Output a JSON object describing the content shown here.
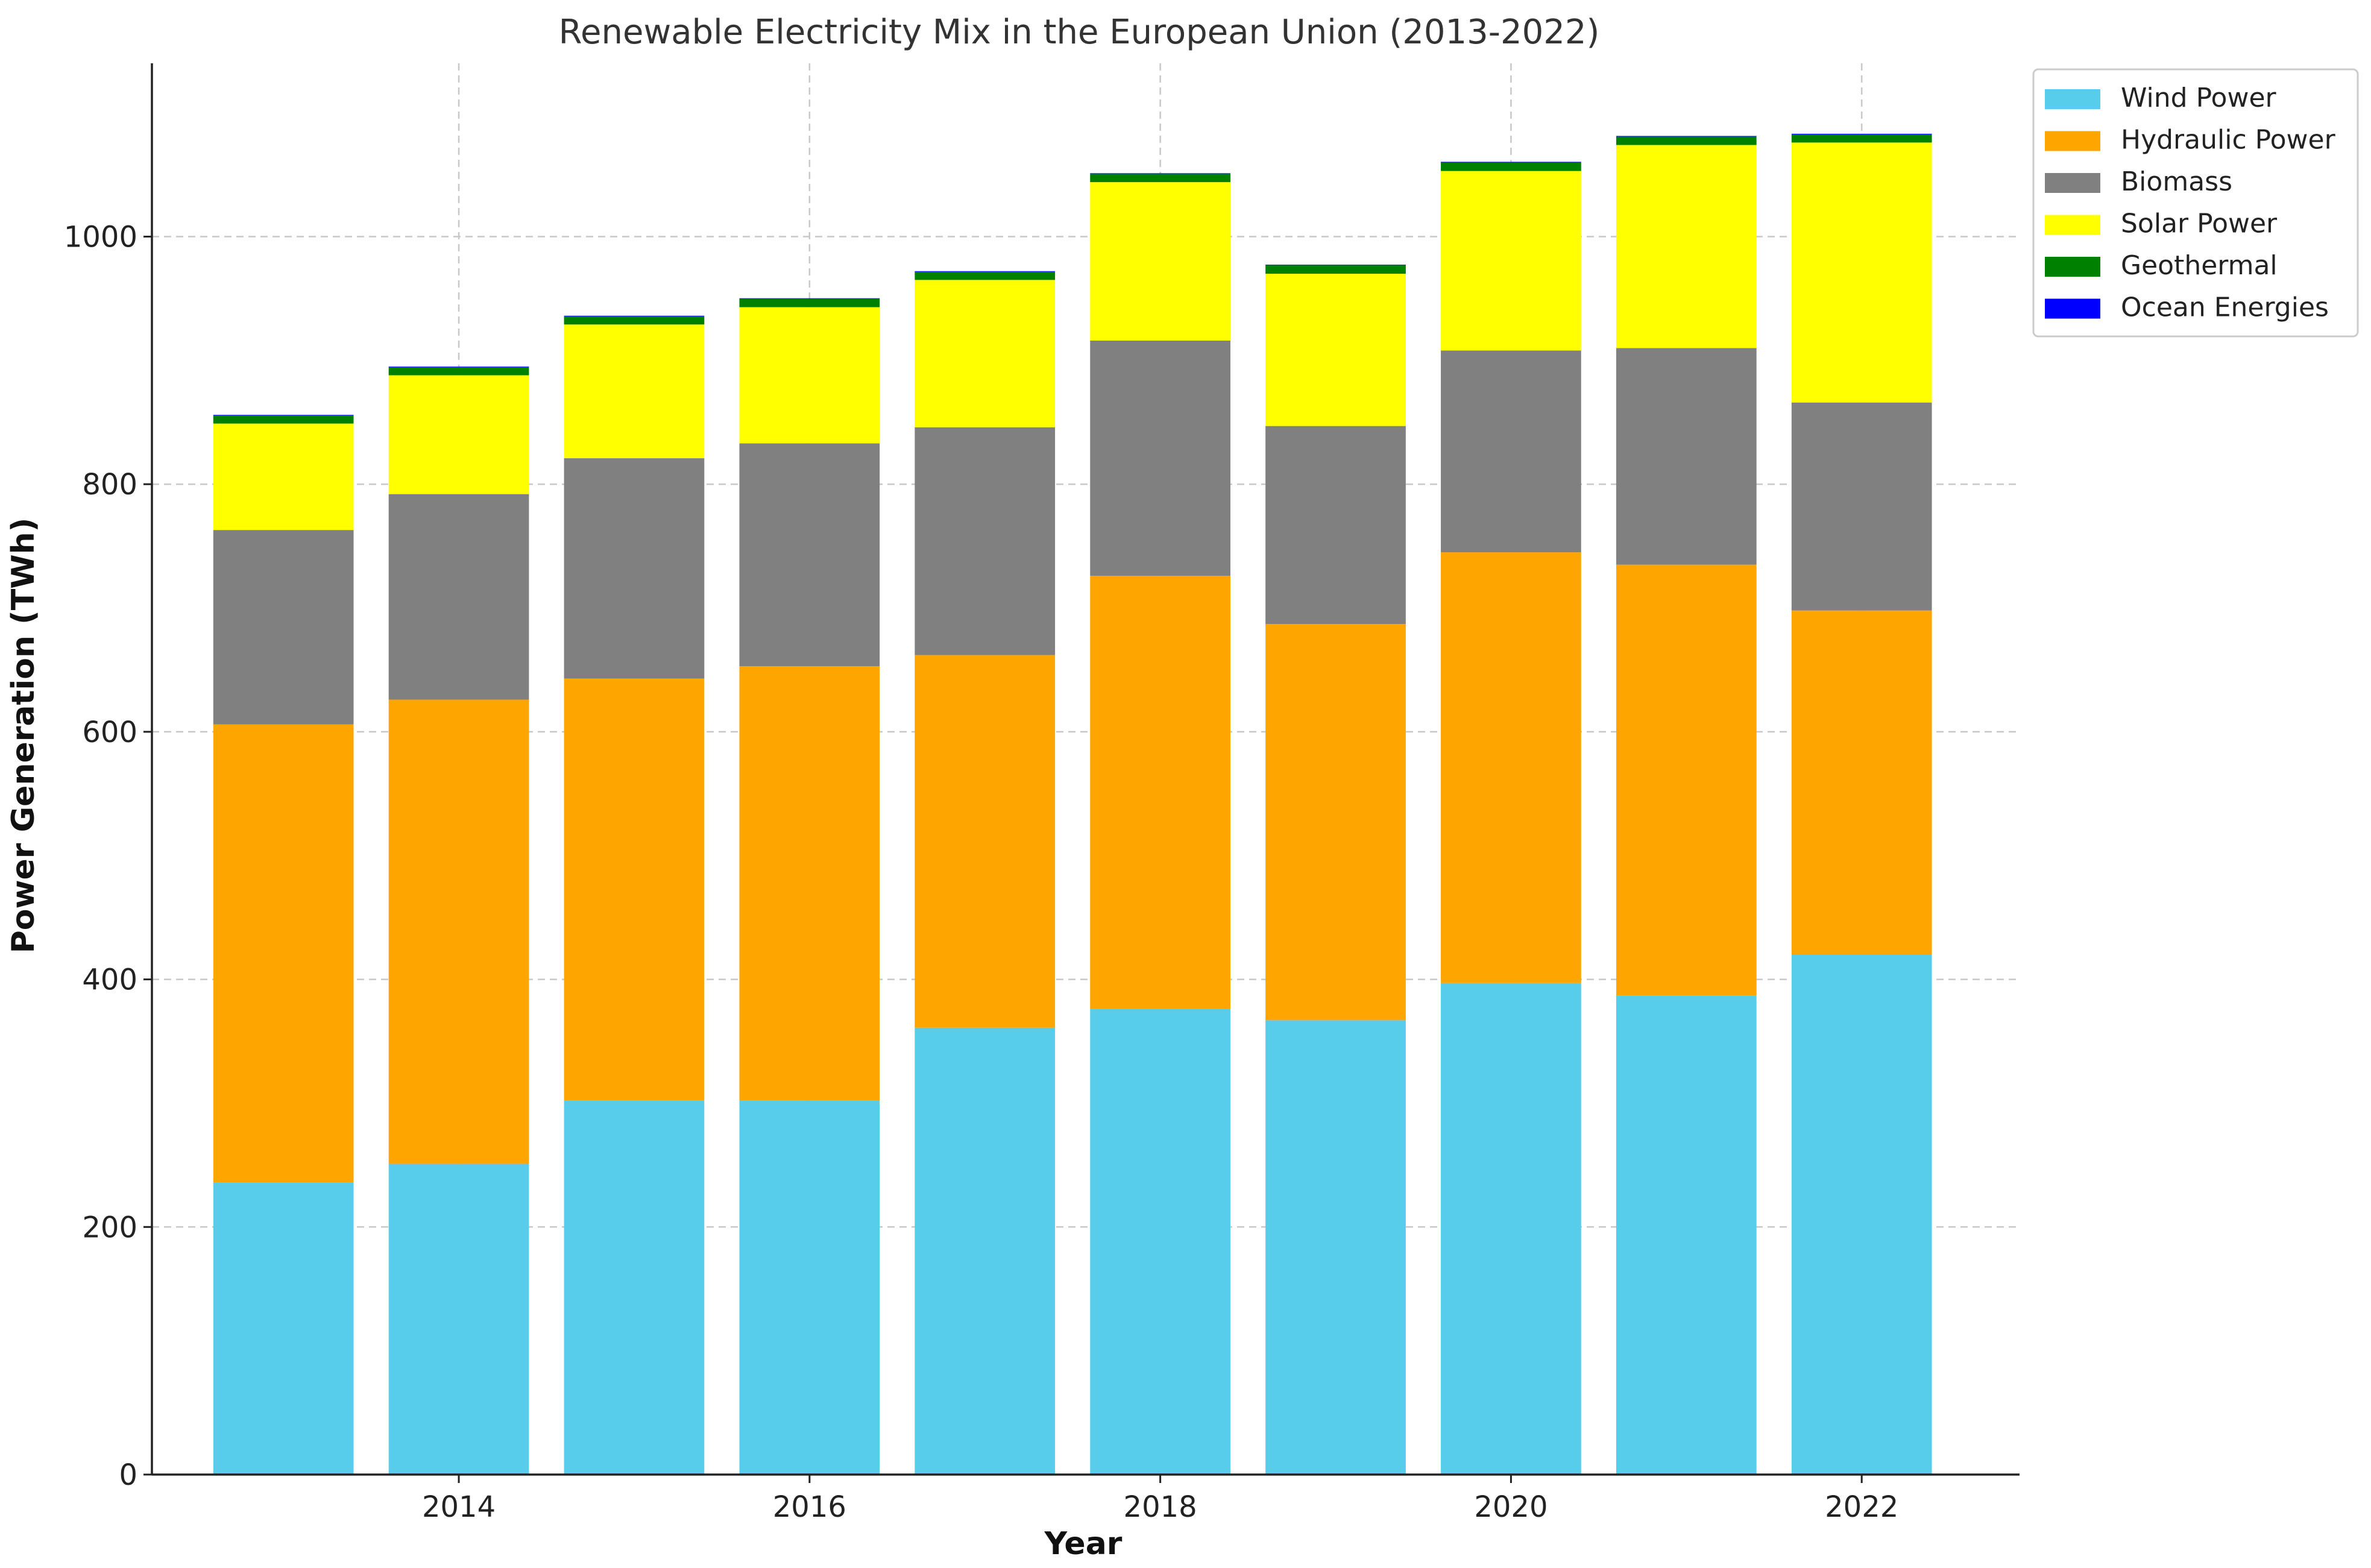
{
  "chart_data": {
    "type": "bar",
    "stacked": true,
    "title": "Renewable Electricity Mix in the European Union (2013-2022)",
    "xlabel": "Year",
    "ylabel": "Power Generation (TWh)",
    "x": [
      2013,
      2014,
      2015,
      2016,
      2017,
      2018,
      2019,
      2020,
      2021,
      2022
    ],
    "xticks": [
      "2014",
      "2016",
      "2018",
      "2020",
      "2022"
    ],
    "xtick_values": [
      2014,
      2016,
      2018,
      2020,
      2022
    ],
    "xlim": [
      2012.25,
      2022.9
    ],
    "yticks": [
      "0",
      "200",
      "400",
      "600",
      "800",
      "1000"
    ],
    "ytick_values": [
      0,
      200,
      400,
      600,
      800,
      1000
    ],
    "ylim": [
      0,
      1140
    ],
    "grid": true,
    "legend_position": "top-right",
    "series": [
      {
        "name": "Wind Power",
        "color": "#58CDEB",
        "values": [
          236,
          251,
          302,
          302,
          361,
          376,
          367,
          397,
          387,
          420
        ]
      },
      {
        "name": "Hydraulic Power",
        "color": "#FFA500",
        "values": [
          370,
          375,
          341,
          351,
          301,
          350,
          320,
          348,
          348,
          278
        ]
      },
      {
        "name": "Biomass",
        "color": "#808080",
        "values": [
          157,
          166,
          178,
          180,
          184,
          190,
          160,
          163,
          175,
          168
        ]
      },
      {
        "name": "Solar Power",
        "color": "#FFFF00",
        "values": [
          86,
          96,
          108,
          110,
          119,
          128,
          123,
          145,
          164,
          210
        ]
      },
      {
        "name": "Geothermal",
        "color": "#008000",
        "values": [
          6.5,
          6.5,
          6.6,
          6.7,
          6.6,
          6.7,
          6.8,
          6.9,
          6.8,
          6.6
        ]
      },
      {
        "name": "Ocean Energies",
        "color": "#0000FF",
        "values": [
          0.5,
          0.5,
          0.5,
          0.5,
          0.5,
          0.5,
          0.5,
          0.5,
          0.5,
          0.5
        ]
      }
    ]
  }
}
